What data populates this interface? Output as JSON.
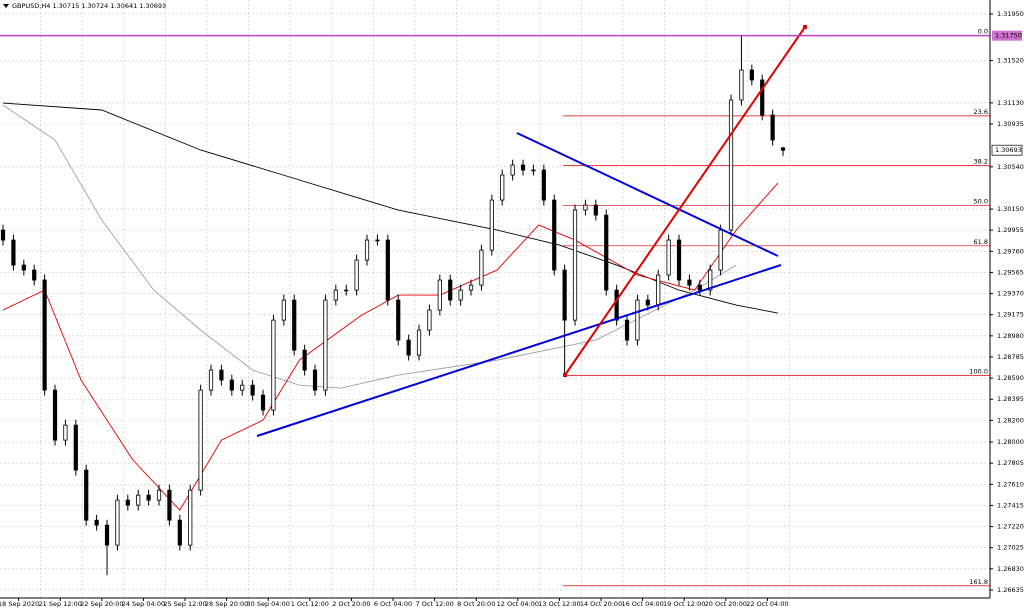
{
  "chart_data": {
    "type": "candlestick",
    "title": "GBPUSD,H4  1.30715 1.30724 1.30641 1.30693",
    "x": [
      0,
      2,
      4,
      6,
      8,
      10,
      12,
      14,
      16,
      18,
      20,
      22,
      24,
      26,
      28,
      30,
      32,
      34,
      36,
      38,
      40,
      42,
      44,
      46,
      48,
      50,
      52,
      54,
      56,
      58,
      60,
      62,
      64,
      66,
      68,
      70,
      72,
      74,
      76,
      78,
      80,
      82,
      84,
      86,
      88,
      90,
      92,
      94,
      96,
      98,
      100,
      102,
      104,
      106,
      108,
      110,
      112,
      114,
      116,
      118,
      120,
      122,
      124,
      126,
      128,
      130,
      132,
      134,
      136,
      138,
      140,
      142,
      144,
      146,
      148,
      150
    ],
    "open": [
      1.29956,
      1.29864,
      1.29633,
      1.29587,
      1.29495,
      1.28479,
      1.28018,
      1.28156,
      1.27741,
      1.27279,
      1.27233,
      1.27049,
      1.27464,
      1.27418,
      1.2751,
      1.27464,
      1.27556,
      1.27279,
      1.27049,
      1.27556,
      1.28479,
      1.28664,
      1.28572,
      1.28479,
      1.28525,
      1.28433,
      1.28295,
      1.29125,
      1.2931,
      1.28848,
      1.28664,
      1.28479,
      1.2931,
      1.29402,
      1.29402,
      1.29679,
      1.29864,
      1.29864,
      1.2931,
      1.28941,
      1.28802,
      1.29033,
      1.29218,
      1.29495,
      1.2931,
      1.29402,
      1.29448,
      1.29771,
      1.30233,
      1.30464,
      1.30556,
      1.3051,
      1.3051,
      1.30233,
      1.29587,
      1.29125,
      1.30141,
      1.30187,
      1.30094,
      1.29402,
      1.29125,
      1.28941,
      1.2931,
      1.29264,
      1.29541,
      1.29864,
      1.29495,
      1.29448,
      1.29402,
      1.29587,
      1.29956,
      1.31156,
      1.31433,
      1.31341,
      1.31018,
      1.30715
    ],
    "high": [
      1.30006,
      1.29914,
      1.29683,
      1.29637,
      1.29545,
      1.28529,
      1.28206,
      1.28206,
      1.27791,
      1.27329,
      1.27283,
      1.27514,
      1.27514,
      1.2756,
      1.2756,
      1.27606,
      1.27606,
      1.27329,
      1.27606,
      1.28529,
      1.28714,
      1.28714,
      1.28622,
      1.28575,
      1.28575,
      1.28483,
      1.29175,
      1.2936,
      1.2936,
      1.28898,
      1.28714,
      1.2936,
      1.29452,
      1.29452,
      1.29729,
      1.29914,
      1.29914,
      1.29914,
      1.2936,
      1.28991,
      1.29083,
      1.29268,
      1.29545,
      1.29545,
      1.29452,
      1.29498,
      1.29821,
      1.30283,
      1.30514,
      1.30606,
      1.30606,
      1.3056,
      1.3056,
      1.30283,
      1.29637,
      1.30191,
      1.30237,
      1.30237,
      1.30144,
      1.29452,
      1.29175,
      1.2936,
      1.2936,
      1.29591,
      1.29914,
      1.29914,
      1.29545,
      1.29498,
      1.29637,
      1.30006,
      1.31206,
      1.3175,
      1.31483,
      1.31391,
      1.31068,
      1.30724
    ],
    "low": [
      1.29814,
      1.29583,
      1.29537,
      1.29445,
      1.28429,
      1.27968,
      1.27968,
      1.27691,
      1.27229,
      1.27183,
      1.26772,
      1.26999,
      1.27368,
      1.27368,
      1.27414,
      1.27414,
      1.27229,
      1.26999,
      1.26999,
      1.27506,
      1.28429,
      1.28522,
      1.28429,
      1.28429,
      1.28383,
      1.28245,
      1.28245,
      1.29075,
      1.28798,
      1.28614,
      1.28429,
      1.28429,
      1.2926,
      1.29352,
      1.29352,
      1.29629,
      1.29814,
      1.2926,
      1.28891,
      1.28752,
      1.28752,
      1.28983,
      1.29168,
      1.2926,
      1.2926,
      1.29352,
      1.29398,
      1.29721,
      1.30183,
      1.30414,
      1.3046,
      1.3046,
      1.30183,
      1.29537,
      1.28613,
      1.29075,
      1.30091,
      1.30044,
      1.29352,
      1.29075,
      1.28891,
      1.28891,
      1.29214,
      1.29214,
      1.29491,
      1.29445,
      1.29398,
      1.29352,
      1.29352,
      1.29537,
      1.29906,
      1.31106,
      1.31291,
      1.30968,
      1.30737,
      1.30641
    ],
    "close": [
      1.29864,
      1.29633,
      1.29587,
      1.29495,
      1.28479,
      1.28018,
      1.28156,
      1.27741,
      1.27279,
      1.27233,
      1.27049,
      1.27464,
      1.27418,
      1.2751,
      1.27464,
      1.27556,
      1.27279,
      1.27049,
      1.27556,
      1.28479,
      1.28664,
      1.28572,
      1.28479,
      1.28525,
      1.28433,
      1.28295,
      1.29125,
      1.2931,
      1.28848,
      1.28664,
      1.28479,
      1.2931,
      1.29402,
      1.29402,
      1.29679,
      1.29864,
      1.29864,
      1.2931,
      1.28941,
      1.28802,
      1.29033,
      1.29218,
      1.29495,
      1.2931,
      1.29402,
      1.29448,
      1.29771,
      1.30233,
      1.30464,
      1.30556,
      1.3051,
      1.3051,
      1.30233,
      1.29587,
      1.29125,
      1.30141,
      1.30187,
      1.30094,
      1.29402,
      1.29125,
      1.28941,
      1.2931,
      1.29264,
      1.29541,
      1.29864,
      1.29495,
      1.29448,
      1.29402,
      1.29587,
      1.29956,
      1.31156,
      1.31433,
      1.31341,
      1.31018,
      1.30787,
      1.30693
    ],
    "up_color": "#ffffff",
    "down_color": "#000000",
    "lines": [
      {
        "color": "#000000",
        "x": [
          0,
          19,
          38,
          57,
          76,
          95,
          107,
          118,
          130,
          141,
          149
        ],
        "values": [
          1.31128,
          1.31064,
          1.30695,
          1.30418,
          1.30141,
          1.29956,
          1.29818,
          1.29633,
          1.29402,
          1.29264,
          1.2919
        ]
      },
      {
        "color": "#a0a0a0",
        "x": [
          0,
          10,
          19,
          29,
          38,
          48,
          57,
          65,
          76,
          95,
          114,
          133,
          141
        ],
        "values": [
          1.3111,
          1.30787,
          1.30048,
          1.29402,
          1.29033,
          1.28664,
          1.28525,
          1.28498,
          1.28618,
          1.28756,
          1.28941,
          1.29402,
          1.29633
        ]
      },
      {
        "color": "#e00000",
        "x": [
          0,
          8,
          15,
          25,
          34,
          42,
          50,
          57,
          69,
          76,
          84,
          95,
          103,
          110,
          122,
          133,
          141,
          149
        ],
        "values": [
          1.29218,
          1.29402,
          1.28572,
          1.27833,
          1.27372,
          1.28018,
          1.28202,
          1.28756,
          1.29172,
          1.29356,
          1.29356,
          1.29587,
          1.30002,
          1.29864,
          1.29541,
          1.29402,
          1.29956,
          1.3039
        ]
      }
    ],
    "fib_levels": [
      {
        "label": "0.0",
        "price": 1.3175
      },
      {
        "label": "23.6",
        "price": 1.3101
      },
      {
        "label": "38.2",
        "price": 1.30552
      },
      {
        "label": "50.0",
        "price": 1.30182
      },
      {
        "label": "61.8",
        "price": 1.29811
      },
      {
        "label": "100.0",
        "price": 1.28613
      },
      {
        "label": "161.8",
        "price": 1.26674
      }
    ],
    "hline": {
      "value": 1.3175,
      "label": "1.31750"
    },
    "last_price": {
      "value": 1.30693,
      "label": "1.30693"
    },
    "xlim": [
      -0.58,
      189.8
    ],
    "ylim": [
      1.26561,
      1.32079
    ],
    "xticks": [
      {
        "value": 3,
        "label": "18 Sep 2020"
      },
      {
        "value": 11,
        "label": "21 Sep 12:00"
      },
      {
        "value": 19,
        "label": "22 Sep 20:00"
      },
      {
        "value": 27,
        "label": "24 Sep 04:00"
      },
      {
        "value": 35,
        "label": "25 Sep 12:00"
      },
      {
        "value": 43,
        "label": "28 Sep 20:00"
      },
      {
        "value": 51,
        "label": "30 Sep 04:00"
      },
      {
        "value": 59,
        "label": "1 Oct 12:00"
      },
      {
        "value": 67,
        "label": "2 Oct 20:00"
      },
      {
        "value": 75,
        "label": "6 Oct 04:00"
      },
      {
        "value": 83,
        "label": "7 Oct 12:00"
      },
      {
        "value": 91,
        "label": "8 Oct 20:00"
      },
      {
        "value": 99,
        "label": "12 Oct 04:00"
      },
      {
        "value": 107,
        "label": "13 Oct 12:00"
      },
      {
        "value": 115,
        "label": "14 Oct 20:00"
      },
      {
        "value": 123,
        "label": "16 Oct 04:00"
      },
      {
        "value": 131,
        "label": "19 Oct 12:00"
      },
      {
        "value": 139,
        "label": "20 Oct 20:00"
      },
      {
        "value": 147,
        "label": "22 Oct 04:00"
      }
    ],
    "yticks": [
      {
        "value": 1.3195,
        "label": "1.31950"
      },
      {
        "value": 1.3152,
        "label": "1.31520"
      },
      {
        "value": 1.3113,
        "label": "1.31130"
      },
      {
        "value": 1.30935,
        "label": "1.30935"
      },
      {
        "value": 1.3054,
        "label": "1.30540"
      },
      {
        "value": 1.3015,
        "label": "1.30150"
      },
      {
        "value": 1.29955,
        "label": "1.29955"
      },
      {
        "value": 1.2976,
        "label": "1.29760"
      },
      {
        "value": 1.29565,
        "label": "1.29565"
      },
      {
        "value": 1.2937,
        "label": "1.29370"
      },
      {
        "value": 1.29175,
        "label": "1.29175"
      },
      {
        "value": 1.2898,
        "label": "1.28980"
      },
      {
        "value": 1.28785,
        "label": "1.28785"
      },
      {
        "value": 1.2859,
        "label": "1.28590"
      },
      {
        "value": 1.28395,
        "label": "1.28395"
      },
      {
        "value": 1.282,
        "label": "1.28200"
      },
      {
        "value": 1.28,
        "label": "1.28000"
      },
      {
        "value": 1.27805,
        "label": "1.27805"
      },
      {
        "value": 1.2761,
        "label": "1.27610"
      },
      {
        "value": 1.27415,
        "label": "1.27415"
      },
      {
        "value": 1.2722,
        "label": "1.27220"
      },
      {
        "value": 1.27025,
        "label": "1.27025"
      },
      {
        "value": 1.2683,
        "label": "1.26830"
      },
      {
        "value": 1.26635,
        "label": "1.26635"
      }
    ],
    "grid": true
  }
}
